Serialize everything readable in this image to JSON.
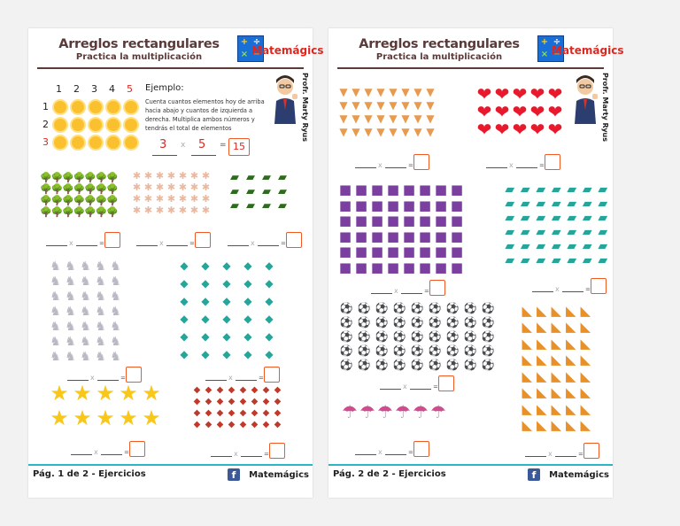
{
  "pages": [
    {
      "title": "Arreglos rectangulares",
      "subtitle": "Practica la multiplicación",
      "brand": "Matemágics",
      "author": "Profr. Marty Ryus",
      "footer_left": "Pág. 1 de 2 - Ejercicios",
      "footer_right": "Matemágics",
      "example": {
        "title": "Ejemplo:",
        "col_numbers": [
          "1",
          "2",
          "3",
          "4",
          "5"
        ],
        "row_numbers": [
          "1",
          "2",
          "3"
        ],
        "text": "Cuenta cuantos elementos hoy de arriba hacia abajo y cuantos de izquierda a derecha. Multiplica ambos números y tendrás el total de elementos",
        "a": "3",
        "b": "5",
        "x_sign": "x",
        "eq_sign": "=",
        "result": "15"
      }
    },
    {
      "title": "Arreglos rectangulares",
      "subtitle": "Practica la multiplicación",
      "brand": "Matemágics",
      "author": "Profr. Marty Ryus",
      "footer_left": "Pág. 2 de 2 - Ejercicios",
      "footer_right": "Matemágics"
    }
  ],
  "equation_symbols": {
    "times": "x",
    "equals": "="
  },
  "arrays": {
    "p1_trees": {
      "rows": 4,
      "cols": 7,
      "icon": "tree-icon",
      "glyph": "🌳",
      "color": "#2e7d32"
    },
    "p1_ginger": {
      "rows": 4,
      "cols": 7,
      "icon": "gingerbread-icon",
      "glyph": "✱",
      "color": "#e8b9a0"
    },
    "p1_cars": {
      "rows": 3,
      "cols": 4,
      "icon": "car-icon",
      "glyph": "▰",
      "color": "#2e6b1f"
    },
    "p1_unicorns": {
      "rows": 7,
      "cols": 5,
      "icon": "unicorn-icon",
      "glyph": "♞",
      "color": "#b9b9c4"
    },
    "p1_fish": {
      "rows": 6,
      "cols": 5,
      "icon": "fish-icon",
      "glyph": "◆",
      "color": "#26a69a"
    },
    "p1_stars": {
      "rows": 2,
      "cols": 5,
      "icon": "star-icon",
      "glyph": "★",
      "color": "#f9c61a"
    },
    "p1_candies": {
      "rows": 4,
      "cols": 8,
      "icon": "candy-icon",
      "glyph": "◆",
      "color": "#c0392b"
    },
    "p2_icecream": {
      "rows": 4,
      "cols": 8,
      "icon": "ice-cream-icon",
      "glyph": "▼",
      "color": "#e89a4f"
    },
    "p2_hearts": {
      "rows": 3,
      "cols": 5,
      "icon": "heart-icon",
      "glyph": "❤",
      "color": "#e8192c"
    },
    "p2_cubes": {
      "rows": 6,
      "cols": 8,
      "icon": "rubiks-cube-icon",
      "glyph": "■",
      "color": "#7b3fa0"
    },
    "p2_books": {
      "rows": 6,
      "cols": 7,
      "icon": "book-icon",
      "glyph": "▰",
      "color": "#26a69a"
    },
    "p2_balls": {
      "rows": 5,
      "cols": 9,
      "icon": "soccer-ball-icon",
      "glyph": "⚽",
      "color": "#111111"
    },
    "p2_squares": {
      "rows": 8,
      "cols": 5,
      "icon": "set-square-icon",
      "glyph": "◣",
      "color": "#e8912a"
    },
    "p2_umbrellas": {
      "rows": 1,
      "cols": 6,
      "icon": "beach-umbrella-icon",
      "glyph": "☂",
      "color": "#d14b8f"
    }
  },
  "colors": {
    "title": "#5b3a3a",
    "accent": "#f15a24",
    "brand_red": "#e0271f",
    "footer_line": "#29b6c6"
  }
}
